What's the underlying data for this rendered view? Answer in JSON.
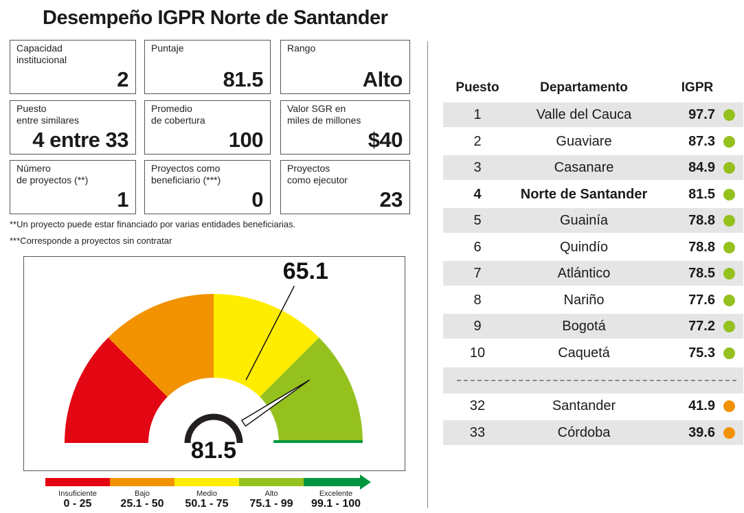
{
  "title": "Desempeño IGPR Norte de Santander",
  "cards": [
    {
      "label": "Capacidad\ninstitucional",
      "value": "2"
    },
    {
      "label": "Puntaje",
      "value": "81.5"
    },
    {
      "label": "Rango",
      "value": "Alto"
    },
    {
      "label": "Puesto\nentre similares",
      "value": "4 entre 33"
    },
    {
      "label": "Promedio\nde cobertura",
      "value": "100"
    },
    {
      "label": "Valor SGR en\nmiles de millones",
      "value": "$40"
    },
    {
      "label": "Número\nde proyectos (**)",
      "value": "1"
    },
    {
      "label": "Proyectos como\nbeneficiario (***)",
      "value": "0"
    },
    {
      "label": "Proyectos\ncomo ejecutor",
      "value": "23"
    }
  ],
  "notes": {
    "note1": "**Un proyecto puede estar financiado por varias entidades beneficiarias.",
    "note2": "***Corresponde a proyectos sin contratar"
  },
  "colors": {
    "insuficiente": "#e30613",
    "bajo": "#f39200",
    "medio": "#ffed00",
    "alto": "#95c11f",
    "excelente": "#009640",
    "dot_green": "#95c11f",
    "dot_orange": "#f39200"
  },
  "chart_data": {
    "type": "gauge",
    "value": 81.5,
    "value_label": "81.5",
    "reference": 65.1,
    "reference_label": "65.1",
    "range": [
      0,
      100
    ],
    "segments": [
      {
        "name": "Insuficiente",
        "range_label": "0 - 25",
        "from": 0,
        "to": 25,
        "color": "#e30613"
      },
      {
        "name": "Bajo",
        "range_label": "25.1 - 50",
        "from": 25,
        "to": 50,
        "color": "#f39200"
      },
      {
        "name": "Medio",
        "range_label": "50.1 - 75",
        "from": 50,
        "to": 75,
        "color": "#ffed00"
      },
      {
        "name": "Alto",
        "range_label": "75.1 - 99",
        "from": 75,
        "to": 99,
        "color": "#95c11f"
      },
      {
        "name": "Excelente",
        "range_label": "99.1 - 100",
        "from": 99,
        "to": 100,
        "color": "#009640"
      }
    ]
  },
  "table": {
    "headers": {
      "puesto": "Puesto",
      "departamento": "Departamento",
      "igpr": "IGPR"
    },
    "rows": [
      {
        "puesto": "1",
        "departamento": "Valle del Cauca",
        "igpr": "97.7",
        "level": "alto"
      },
      {
        "puesto": "2",
        "departamento": "Guaviare",
        "igpr": "87.3",
        "level": "alto"
      },
      {
        "puesto": "3",
        "departamento": "Casanare",
        "igpr": "84.9",
        "level": "alto"
      },
      {
        "puesto": "4",
        "departamento": "Norte de Santander",
        "igpr": "81.5",
        "level": "alto"
      },
      {
        "puesto": "5",
        "departamento": "Guainía",
        "igpr": "78.8",
        "level": "alto"
      },
      {
        "puesto": "6",
        "departamento": "Quindío",
        "igpr": "78.8",
        "level": "alto"
      },
      {
        "puesto": "7",
        "departamento": "Atlántico",
        "igpr": "78.5",
        "level": "alto"
      },
      {
        "puesto": "8",
        "departamento": "Nariño",
        "igpr": "77.6",
        "level": "alto"
      },
      {
        "puesto": "9",
        "departamento": "Bogotá",
        "igpr": "77.2",
        "level": "alto"
      },
      {
        "puesto": "10",
        "departamento": "Caquetá",
        "igpr": "75.3",
        "level": "alto"
      }
    ],
    "bottom_rows": [
      {
        "puesto": "32",
        "departamento": "Santander",
        "igpr": "41.9",
        "level": "bajo"
      },
      {
        "puesto": "33",
        "departamento": "Córdoba",
        "igpr": "39.6",
        "level": "bajo"
      }
    ]
  }
}
